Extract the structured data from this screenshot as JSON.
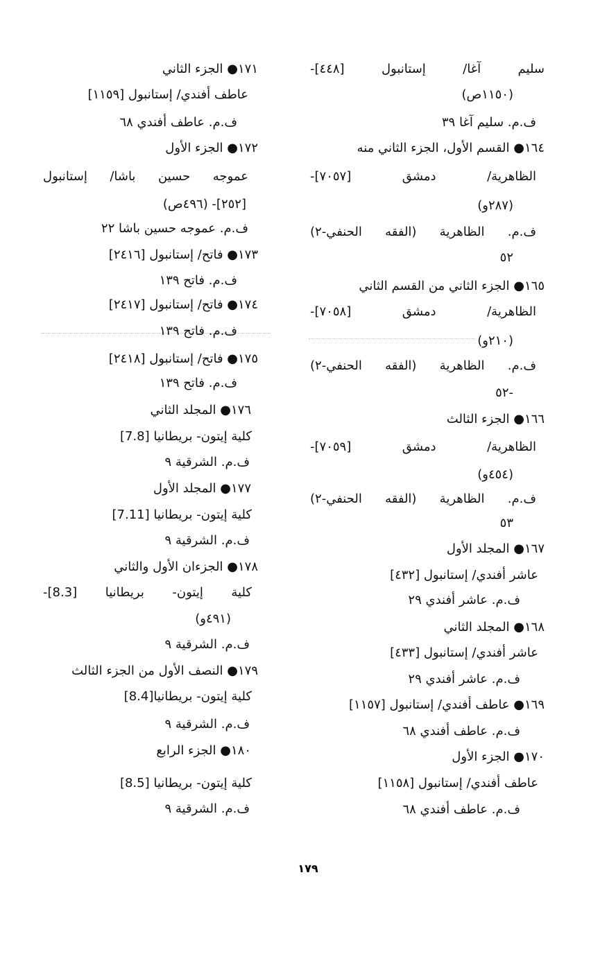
{
  "right_column": {
    "lines": [
      "سليم آغا/ إستانبول [٤٤٨]-",
      "(١١٥٠ص)",
      "ف.م. سليم آغا ٣٩",
      "١٦٤● القسم الأول، الجزء الثاني منه",
      "الظاهرية/ دمشق [٧٠٥٧]-",
      "(٢٨٧و)",
      "ف.م. الظاهرية (الفقه الحنفي-٢)",
      "٥٢",
      "١٦٥● الجزء الثاني من القسم الثاني",
      "الظاهرية/ دمشق [٧٠٥٨]-",
      "(٢١٠و)",
      "ف.م. الظاهرية (الفقه الحنفي-٢)",
      "-٥٢",
      "١٦٦● الجزء الثالث",
      "الظاهرية/ دمشق [٧٠٥٩]-",
      "(٤٥٤و)",
      "ف.م. الظاهرية (الفقه الحنفي-٢)",
      "٥٣",
      "١٦٧● المجلد الأول",
      "عاشر أفندي/ إستانبول [٤٣٢]",
      "ف.م. عاشر أفندي ٢٩",
      "١٦٨● المجلد الثاني",
      "عاشر أفندي/ إستانبول [٤٣٣]",
      "ف.م. عاشر أفندي ٢٩",
      "١٦٩● عاطف أفندي/ إستانبول [١١٥٧]",
      "ف.م. عاطف أفندي ٦٨",
      "١٧٠● الجزء الأول",
      "عاطف أفندي/ إستانبول [١١٥٨]",
      "ف.م. عاطف أفندي ٦٨"
    ]
  },
  "left_column": {
    "lines": [
      "١٧١● الجزء الثاني",
      "عاطف أفندي/ إستانبول [١١٥٩]",
      "ف.م. عاطف أفندي ٦٨",
      "١٧٢● الجزء الأول",
      "عموجه حسين باشا/ إستانبول",
      "[٢٥٢]- (٤٩٦ص)",
      "ف.م. عموجه حسين باشا ٢٢",
      "١٧٣● فاتح/ إستانبول [٢٤١٦]",
      "ف.م. فاتح ١٣٩",
      "١٧٤● فاتح/ إستانبول [٢٤١٧]",
      "ف.م. فاتح ١٣٩",
      "١٧٥● فاتح/ إستانبول [٢٤١٨]",
      "ف.م. فاتح ١٣٩",
      "١٧٦● المجلد الثاني",
      "كلية إيتون- بريطانيا [7.8]",
      "ف.م. الشرقية ٩",
      "١٧٧● المجلد الأول",
      "كلية إيتون- بريطانيا [7.11]",
      "ف.م. الشرقية ٩",
      "١٧٨● الجزءان الأول والثاني",
      "كلية إيتون- بريطانيا [8.3]-",
      "(٤٩١و)",
      "ف.م. الشرقية ٩",
      "١٧٩● النصف الأول من الجزء الثالث",
      "كلية إيتون- بريطانيا[8.4]",
      "ف.م. الشرقية ٩",
      "١٨٠● الجزء الرابع",
      "كلية إيتون- بريطانيا [8.5]",
      "ف.م. الشرقية ٩"
    ]
  },
  "page_number": "١٧٩"
}
